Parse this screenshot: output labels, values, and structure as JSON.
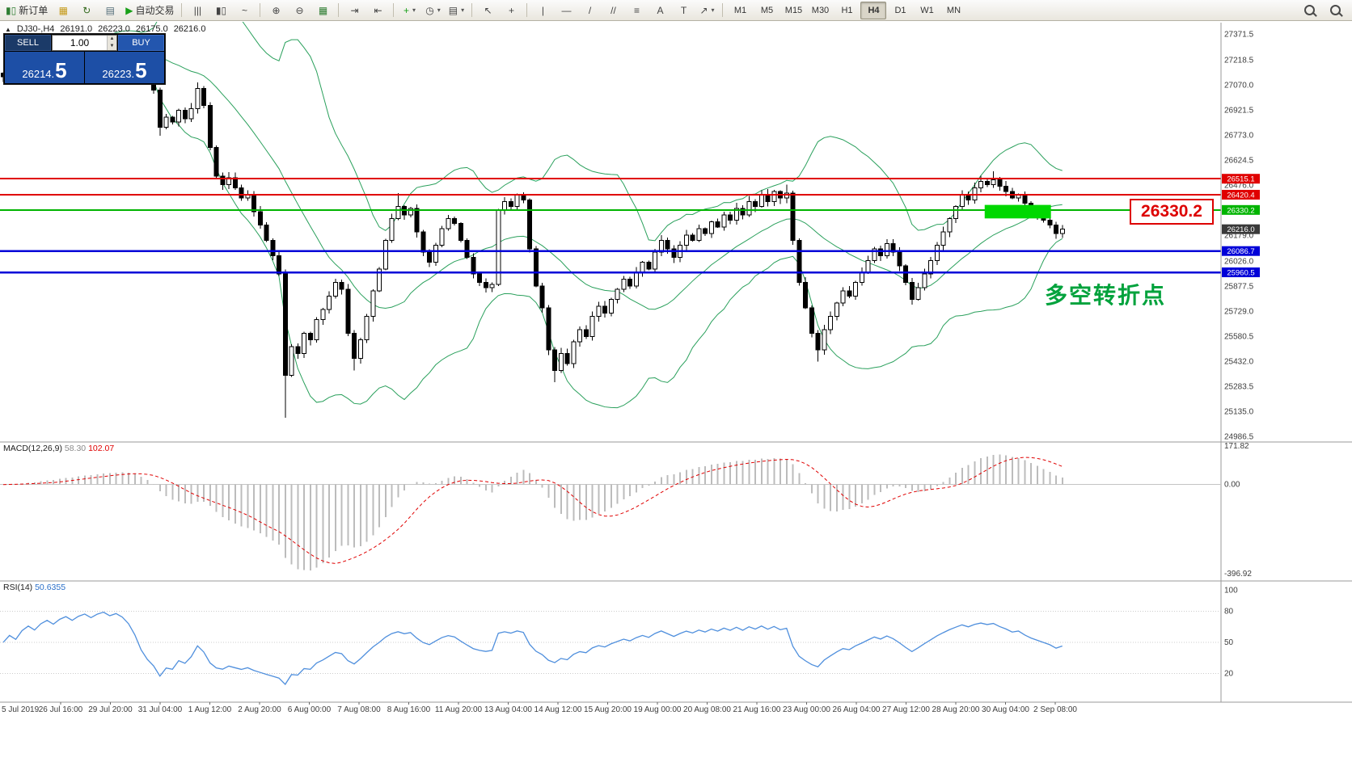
{
  "toolbar": {
    "caret_glyph": "▾",
    "groups": [
      {
        "items": [
          {
            "name": "new-order-button",
            "glyph": "▮▯",
            "glyph_color": "#2e7d32",
            "label": "新订单"
          },
          {
            "name": "chart-window-button",
            "glyph": "▦",
            "glyph_color": "#c59a1a"
          },
          {
            "name": "refresh-button",
            "glyph": "↻",
            "glyph_color": "#33691e"
          },
          {
            "name": "print-button",
            "glyph": "▤",
            "glyph_color": "#546e7a"
          },
          {
            "name": "autotrading-button",
            "glyph": "▶",
            "glyph_color": "#18a018",
            "label": "自动交易"
          }
        ]
      },
      {
        "items": [
          {
            "name": "bar-chart-button",
            "glyph": "|||",
            "glyph_color": "#444"
          },
          {
            "name": "candlestick-chart-button",
            "glyph": "▮▯",
            "glyph_color": "#444"
          },
          {
            "name": "line-chart-button",
            "glyph": "~",
            "glyph_color": "#444"
          }
        ]
      },
      {
        "items": [
          {
            "name": "zoom-in-button",
            "glyph": "⊕",
            "glyph_color": "#444"
          },
          {
            "name": "zoom-out-button",
            "glyph": "⊖",
            "glyph_color": "#444"
          },
          {
            "name": "tile-windows-button",
            "glyph": "▦",
            "glyph_color": "#2e7d32"
          }
        ]
      },
      {
        "items": [
          {
            "name": "auto-scroll-button",
            "glyph": "⇥",
            "glyph_color": "#444"
          },
          {
            "name": "chart-shift-button",
            "glyph": "⇤",
            "glyph_color": "#444"
          }
        ]
      },
      {
        "items": [
          {
            "name": "indicators-button",
            "glyph": "+",
            "glyph_color": "#18a018",
            "caret": true
          },
          {
            "name": "periods-button",
            "glyph": "◷",
            "glyph_color": "#444",
            "caret": true
          },
          {
            "name": "templates-button",
            "glyph": "▤",
            "glyph_color": "#444",
            "caret": true
          }
        ]
      },
      {
        "items": [
          {
            "name": "cursor-button",
            "glyph": "↖",
            "glyph_color": "#444"
          },
          {
            "name": "crosshair-button",
            "glyph": "+",
            "glyph_color": "#444"
          }
        ]
      },
      {
        "items": [
          {
            "name": "vertical-line-button",
            "glyph": "|",
            "glyph_color": "#444"
          },
          {
            "name": "horizontal-line-button",
            "glyph": "—",
            "glyph_color": "#444"
          },
          {
            "name": "trendline-button",
            "glyph": "/",
            "glyph_color": "#444"
          },
          {
            "name": "channel-button",
            "glyph": "//",
            "glyph_color": "#444"
          },
          {
            "name": "fibonacci-button",
            "glyph": "≡",
            "glyph_color": "#444"
          },
          {
            "name": "text-button",
            "glyph": "A",
            "glyph_color": "#444"
          },
          {
            "name": "label-button",
            "glyph": "T",
            "glyph_color": "#444"
          },
          {
            "name": "arrows-button",
            "glyph": "↗",
            "glyph_color": "#444",
            "caret": true
          }
        ]
      }
    ],
    "timeframes": {
      "items": [
        "M1",
        "M5",
        "M15",
        "M30",
        "H1",
        "H4",
        "D1",
        "W1",
        "MN"
      ],
      "active": "H4"
    },
    "right_icons": [
      {
        "name": "search-button"
      },
      {
        "name": "pan-button"
      }
    ]
  },
  "chart_header": {
    "collapse_glyph": "▲",
    "symbol_period": "DJ30-,H4",
    "open": "26191.0",
    "high": "26223.0",
    "low": "26175.0",
    "close": "26216.0"
  },
  "trade_panel": {
    "sell_label": "SELL",
    "buy_label": "BUY",
    "volume": "1.00",
    "up_glyph": "▲",
    "down_glyph": "▼",
    "sell_price_main": "26214.",
    "sell_price_big": "5",
    "buy_price_main": "26223.",
    "buy_price_big": "5"
  },
  "annotations": {
    "big_price_label": "26330.2",
    "cn_note": "多空转折点"
  },
  "chart_data": {
    "type": "candlestick+indicators",
    "symbol": "DJ30-",
    "timeframe": "H4",
    "price_axis": {
      "labels": [
        "27371.5",
        "27218.5",
        "27070.0",
        "26921.5",
        "26773.0",
        "26624.5",
        "26476.0",
        "26179.0",
        "26026.0",
        "25877.5",
        "25729.0",
        "25580.5",
        "25432.0",
        "25283.5",
        "25135.0",
        "24986.5"
      ]
    },
    "level_lines": [
      {
        "value": 26515.1,
        "color": "#e00000",
        "width": 2
      },
      {
        "value": 26420.4,
        "color": "#e00000",
        "width": 2
      },
      {
        "value": 26330.2,
        "color": "#00b400",
        "width": 2
      },
      {
        "value": 26086.7,
        "color": "#0000d8",
        "width": 2.5
      },
      {
        "value": 25960.5,
        "color": "#0000d8",
        "width": 2.5
      }
    ],
    "current_price": {
      "value": 26216.0,
      "tag_color": "#3a3a3a"
    },
    "highlight_box": {
      "start_index": 157,
      "end_index": 166.8,
      "price_top": 26360,
      "price_bottom": 26280,
      "color": "#00d800"
    },
    "bollinger": {
      "period": 20,
      "deviation": 2,
      "color": "#2aa05c"
    },
    "candles": {
      "up_fill": "#ffffff",
      "down_fill": "#000000",
      "outline": "#000000",
      "closes": [
        27120,
        27140,
        27130,
        27160,
        27180,
        27170,
        27200,
        27220,
        27210,
        27240,
        27260,
        27250,
        27280,
        27300,
        27290,
        27320,
        27340,
        27330,
        27350,
        27340,
        27320,
        27280,
        27200,
        27120,
        27040,
        26820,
        26880,
        26850,
        26920,
        26870,
        26930,
        27050,
        26950,
        26700,
        26530,
        26480,
        26520,
        26460,
        26400,
        26420,
        26320,
        26240,
        26150,
        26060,
        25950,
        25350,
        25520,
        25480,
        25600,
        25560,
        25680,
        25740,
        25820,
        25900,
        25860,
        25600,
        25450,
        25560,
        25700,
        25850,
        25980,
        26150,
        26280,
        26350,
        26300,
        26340,
        26200,
        26080,
        26020,
        26120,
        26220,
        26280,
        26250,
        26150,
        26050,
        25950,
        25900,
        25870,
        25890,
        26330,
        26380,
        26350,
        26420,
        26390,
        26100,
        25880,
        25750,
        25500,
        25380,
        25480,
        25420,
        25550,
        25620,
        25580,
        25700,
        25760,
        25720,
        25800,
        25860,
        25920,
        25880,
        25960,
        26020,
        25980,
        26080,
        26150,
        26100,
        26050,
        26120,
        26180,
        26150,
        26220,
        26190,
        26260,
        26230,
        26300,
        26270,
        26340,
        26300,
        26380,
        26350,
        26420,
        26380,
        26440,
        26400,
        26430,
        26150,
        25900,
        25750,
        25600,
        25500,
        25620,
        25700,
        25780,
        25850,
        25820,
        25900,
        25960,
        26030,
        26100,
        26060,
        26130,
        26080,
        26000,
        25900,
        25800,
        25870,
        25950,
        26030,
        26120,
        26200,
        26280,
        26350,
        26420,
        26390,
        26460,
        26500,
        26480,
        26510,
        26470,
        26440,
        26400,
        26420,
        26370,
        26330,
        26300,
        26270,
        26240,
        26191,
        26216
      ],
      "wick_overrides": {
        "25": {
          "low": 26770
        },
        "31": {
          "high": 27085
        },
        "45": {
          "low": 25100
        },
        "56": {
          "low": 25380
        },
        "63": {
          "high": 26430
        },
        "88": {
          "low": 25310
        },
        "125": {
          "high": 26480
        },
        "130": {
          "low": 25432
        },
        "158": {
          "high": 26560
        }
      }
    },
    "macd": {
      "label": "MACD(12,26,9)",
      "value_main": "58.30",
      "value_signal": "102.07",
      "axis_labels": [
        171.82,
        0.0,
        -396.92
      ],
      "hist_color": "#bcbcbc",
      "signal_color": "#e00000"
    },
    "rsi": {
      "label": "RSI(14)",
      "value": "50.6355",
      "axis_labels": [
        100,
        80,
        50,
        20
      ],
      "levels": [
        80,
        50,
        20
      ],
      "color": "#4f8fdd"
    },
    "time_axis": {
      "labels": [
        "5 Jul 2019",
        "26 Jul 16:00",
        "29 Jul 20:00",
        "31 Jul 04:00",
        "1 Aug 12:00",
        "2 Aug 20:00",
        "6 Aug 00:00",
        "7 Aug 08:00",
        "8 Aug 16:00",
        "11 Aug 20:00",
        "13 Aug 04:00",
        "14 Aug 12:00",
        "15 Aug 20:00",
        "19 Aug 00:00",
        "20 Aug 08:00",
        "21 Aug 16:00",
        "23 Aug 00:00",
        "26 Aug 04:00",
        "27 Aug 12:00",
        "28 Aug 20:00",
        "30 Aug 04:00",
        "2 Sep 08:00"
      ]
    }
  }
}
